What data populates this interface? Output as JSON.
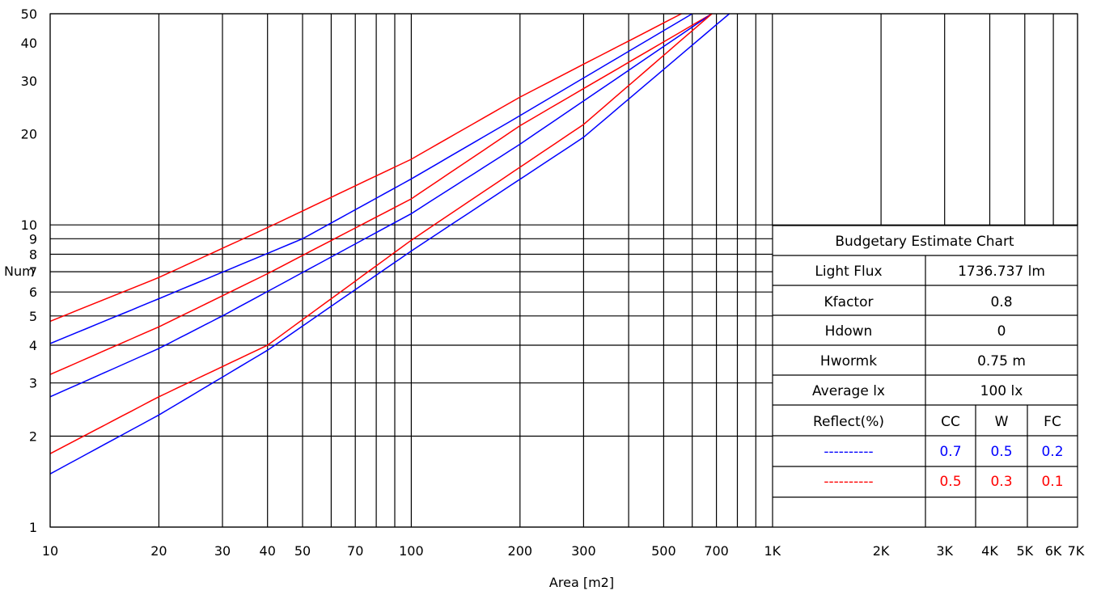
{
  "chart_data": {
    "type": "line",
    "xlabel": "Area [m2]",
    "ylabel": "Num",
    "x_scale": "log",
    "y_scale": "log",
    "xlim": [
      10,
      7000
    ],
    "ylim": [
      1,
      50
    ],
    "grid": true,
    "x_ticks": [
      {
        "v": 10,
        "label": "10"
      },
      {
        "v": 20,
        "label": "20"
      },
      {
        "v": 30,
        "label": "30"
      },
      {
        "v": 40,
        "label": "40"
      },
      {
        "v": 50,
        "label": "50"
      },
      {
        "v": 70,
        "label": "70"
      },
      {
        "v": 100,
        "label": "100"
      },
      {
        "v": 200,
        "label": "200"
      },
      {
        "v": 300,
        "label": "300"
      },
      {
        "v": 500,
        "label": "500"
      },
      {
        "v": 700,
        "label": "700"
      },
      {
        "v": 1000,
        "label": "1K"
      },
      {
        "v": 2000,
        "label": "2K"
      },
      {
        "v": 3000,
        "label": "3K"
      },
      {
        "v": 4000,
        "label": "4K"
      },
      {
        "v": 5000,
        "label": "5K"
      },
      {
        "v": 6000,
        "label": "6K"
      },
      {
        "v": 7000,
        "label": "7K"
      }
    ],
    "y_ticks": [
      {
        "v": 1,
        "label": "1"
      },
      {
        "v": 2,
        "label": "2"
      },
      {
        "v": 3,
        "label": "3"
      },
      {
        "v": 4,
        "label": "4"
      },
      {
        "v": 5,
        "label": "5"
      },
      {
        "v": 6,
        "label": "6"
      },
      {
        "v": 7,
        "label": "7"
      },
      {
        "v": 8,
        "label": "8"
      },
      {
        "v": 9,
        "label": "9"
      },
      {
        "v": 10,
        "label": "10"
      },
      {
        "v": 20,
        "label": "20"
      },
      {
        "v": 30,
        "label": "30"
      },
      {
        "v": 40,
        "label": "40"
      },
      {
        "v": 50,
        "label": "50"
      }
    ],
    "x_gridlines": [
      10,
      20,
      30,
      40,
      50,
      60,
      70,
      80,
      90,
      100,
      200,
      300,
      400,
      500,
      600,
      700,
      800,
      900,
      1000,
      2000,
      3000,
      4000,
      5000,
      6000,
      7000
    ],
    "y_gridlines": [
      1,
      2,
      3,
      4,
      5,
      6,
      7,
      8,
      9,
      10,
      50
    ],
    "series": [
      {
        "color": "#ff0000",
        "x": [
          10,
          20,
          40,
          100,
          200,
          560
        ],
        "y": [
          4.8,
          6.7,
          9.8,
          16.5,
          26.5,
          50
        ]
      },
      {
        "color": "#0000ff",
        "x": [
          10,
          20,
          50,
          100,
          200,
          600
        ],
        "y": [
          4.05,
          5.7,
          9.0,
          14.2,
          23.0,
          50
        ]
      },
      {
        "color": "#ff0000",
        "x": [
          10,
          20,
          40,
          100,
          200,
          680
        ],
        "y": [
          3.2,
          4.6,
          6.9,
          12.2,
          21.3,
          50
        ]
      },
      {
        "color": "#0000ff",
        "x": [
          10,
          20,
          30,
          100,
          200,
          680
        ],
        "y": [
          2.7,
          3.9,
          5.0,
          10.9,
          18.5,
          50
        ]
      },
      {
        "color": "#ff0000",
        "x": [
          10,
          20,
          40,
          100,
          300,
          680
        ],
        "y": [
          1.75,
          2.7,
          4.0,
          8.9,
          21.5,
          50
        ]
      },
      {
        "color": "#0000ff",
        "x": [
          10,
          20,
          40,
          100,
          300,
          760
        ],
        "y": [
          1.5,
          2.35,
          3.85,
          8.2,
          19.5,
          50
        ]
      }
    ]
  },
  "table": {
    "title": "Budgetary Estimate Chart",
    "rows": [
      {
        "label": "Light Flux",
        "value": "1736.737 lm"
      },
      {
        "label": "Kfactor",
        "value": "0.8"
      },
      {
        "label": "Hdown",
        "value": "0"
      },
      {
        "label": "Hwormk",
        "value": "0.75 m"
      },
      {
        "label": "Average lx",
        "value": "100 lx"
      }
    ],
    "reflect_label": "Reflect(%)",
    "reflect_headers": [
      "CC",
      "W",
      "FC"
    ],
    "legend_rows": [
      {
        "dash": "----------",
        "color": "#0000ff",
        "values": [
          "0.7",
          "0.5",
          "0.2"
        ]
      },
      {
        "dash": "----------",
        "color": "#ff0000",
        "values": [
          "0.5",
          "0.3",
          "0.1"
        ]
      }
    ]
  }
}
